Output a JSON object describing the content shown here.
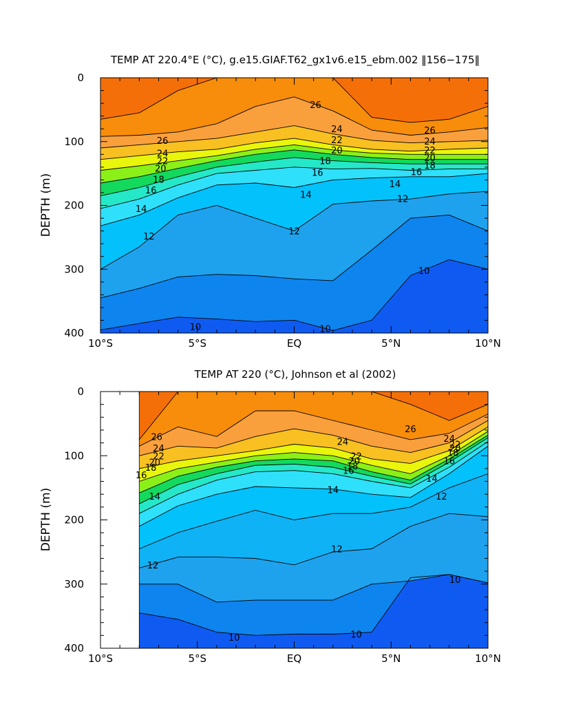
{
  "chart_data": [
    {
      "type": "contour",
      "title": "TEMP AT 220.4°E (°C), g.e15.GIAF.T62_gx1v6.e15_ebm.002 ‖156−175‖",
      "xlabel": "",
      "ylabel": "DEPTH (m)",
      "xlim": [
        -10,
        10
      ],
      "ylim": [
        400,
        0
      ],
      "x_ticks": [
        -10,
        -5,
        0,
        5,
        10
      ],
      "x_tick_labels": [
        "10°S",
        "5°S",
        "EQ",
        "5°N",
        "10°N"
      ],
      "y_ticks": [
        0,
        100,
        200,
        300,
        400
      ],
      "y_tick_labels": [
        "0",
        "100",
        "200",
        "300",
        "400"
      ],
      "data_start_lat": -10,
      "latitudes": [
        -10,
        -8,
        -6,
        -4,
        -2,
        0,
        2,
        4,
        6,
        8,
        10
      ],
      "isotherm_depths": {
        "28": [
          65,
          55,
          20,
          0,
          0,
          0,
          0,
          62,
          70,
          65,
          45
        ],
        "27": [
          92,
          90,
          85,
          72,
          45,
          30,
          52,
          82,
          90,
          85,
          78
        ],
        "26": [
          110,
          105,
          100,
          95,
          85,
          75,
          88,
          98,
          102,
          100,
          98
        ],
        "24": [
          128,
          122,
          116,
          112,
          102,
          95,
          105,
          112,
          115,
          112,
          110
        ],
        "22": [
          145,
          138,
          130,
          122,
          112,
          105,
          113,
          118,
          120,
          120,
          120
        ],
        "20": [
          165,
          155,
          142,
          130,
          120,
          113,
          120,
          125,
          128,
          128,
          128
        ],
        "18": [
          185,
          172,
          155,
          140,
          132,
          125,
          130,
          133,
          135,
          135,
          135
        ],
        "16": [
          205,
          190,
          168,
          150,
          145,
          140,
          143,
          142,
          145,
          143,
          143
        ],
        "14": [
          232,
          215,
          188,
          168,
          165,
          172,
          160,
          157,
          155,
          155,
          150
        ],
        "12": [
          300,
          265,
          215,
          200,
          220,
          240,
          198,
          193,
          190,
          182,
          178
        ],
        "11": [
          345,
          330,
          312,
          308,
          310,
          315,
          318,
          270,
          220,
          215,
          240
        ],
        "10": [
          395,
          385,
          375,
          378,
          382,
          380,
          396,
          380,
          310,
          285,
          300
        ]
      },
      "fill_levels": [
        "<10",
        "10-11",
        "11-12",
        "12-13",
        "13-14",
        "14-16",
        "16-18",
        "18-20",
        "20-22",
        "22-24",
        "24-26",
        "26-27",
        "27-28",
        ">28"
      ],
      "fill_colors": [
        "#0f5bf2",
        "#0e84ee",
        "#1ea2ee",
        "#03c1fb",
        "#2fe0fb",
        "#25e8c8",
        "#13d95d",
        "#8bf018",
        "#eaf50c",
        "#f8c021",
        "#f9a03d",
        "#f78d0a",
        "#f56f08",
        "#f24506"
      ],
      "contour_labels": [
        {
          "text": "26",
          "lat": 1.1,
          "depth": 42
        },
        {
          "text": "26",
          "lat": -6.8,
          "depth": 98
        },
        {
          "text": "24",
          "lat": -6.8,
          "depth": 118
        },
        {
          "text": "22",
          "lat": -6.8,
          "depth": 130
        },
        {
          "text": "20",
          "lat": -6.9,
          "depth": 142
        },
        {
          "text": "18",
          "lat": -7.0,
          "depth": 159
        },
        {
          "text": "16",
          "lat": -7.4,
          "depth": 176
        },
        {
          "text": "14",
          "lat": -7.9,
          "depth": 205
        },
        {
          "text": "12",
          "lat": -7.5,
          "depth": 248
        },
        {
          "text": "24",
          "lat": 2.2,
          "depth": 80
        },
        {
          "text": "22",
          "lat": 2.2,
          "depth": 97
        },
        {
          "text": "20",
          "lat": 2.2,
          "depth": 113
        },
        {
          "text": "18",
          "lat": 1.6,
          "depth": 130
        },
        {
          "text": "16",
          "lat": 1.2,
          "depth": 148
        },
        {
          "text": "14",
          "lat": 0.6,
          "depth": 183
        },
        {
          "text": "12",
          "lat": 0.0,
          "depth": 240
        },
        {
          "text": "26",
          "lat": 7.0,
          "depth": 82
        },
        {
          "text": "24",
          "lat": 7.0,
          "depth": 99
        },
        {
          "text": "22",
          "lat": 7.0,
          "depth": 113
        },
        {
          "text": "20",
          "lat": 7.0,
          "depth": 125
        },
        {
          "text": "18",
          "lat": 7.0,
          "depth": 137
        },
        {
          "text": "16",
          "lat": 6.3,
          "depth": 147
        },
        {
          "text": "14",
          "lat": 5.2,
          "depth": 166
        },
        {
          "text": "12",
          "lat": 5.6,
          "depth": 189
        },
        {
          "text": "10",
          "lat": 6.7,
          "depth": 302
        },
        {
          "text": "10",
          "lat": -5.1,
          "depth": 390
        },
        {
          "text": "10",
          "lat": 1.6,
          "depth": 393
        }
      ]
    },
    {
      "type": "contour",
      "title": "TEMP AT 220 (°C), Johnson et al (2002)",
      "xlabel": "",
      "ylabel": "DEPTH (m)",
      "xlim": [
        -10,
        10
      ],
      "ylim": [
        400,
        0
      ],
      "x_ticks": [
        -10,
        -5,
        0,
        5,
        10
      ],
      "x_tick_labels": [
        "10°S",
        "5°S",
        "EQ",
        "5°N",
        "10°N"
      ],
      "y_ticks": [
        0,
        100,
        200,
        300,
        400
      ],
      "y_tick_labels": [
        "0",
        "100",
        "200",
        "300",
        "400"
      ],
      "data_start_lat": -8,
      "latitudes": [
        -8,
        -6,
        -4,
        -2,
        0,
        2,
        4,
        6,
        8,
        10
      ],
      "isotherm_depths": {
        "28": [
          75,
          0,
          0,
          0,
          0,
          0,
          0,
          20,
          45,
          20
        ],
        "27": [
          85,
          55,
          70,
          30,
          30,
          45,
          60,
          75,
          65,
          35
        ],
        "26": [
          100,
          85,
          88,
          70,
          58,
          68,
          85,
          95,
          80,
          45
        ],
        "24": [
          120,
          108,
          100,
          92,
          82,
          88,
          105,
          112,
          92,
          55
        ],
        "22": [
          140,
          120,
          110,
          100,
          95,
          100,
          115,
          128,
          100,
          62
        ],
        "20": [
          158,
          132,
          118,
          108,
          105,
          108,
          125,
          138,
          105,
          68
        ],
        "18": [
          175,
          145,
          128,
          115,
          113,
          118,
          132,
          144,
          110,
          72
        ],
        "16": [
          190,
          160,
          138,
          125,
          123,
          128,
          140,
          150,
          118,
          78
        ],
        "14": [
          210,
          178,
          160,
          148,
          150,
          152,
          160,
          165,
          128,
          85
        ],
        "12": [
          245,
          220,
          202,
          185,
          200,
          190,
          190,
          180,
          150,
          128
        ],
        "11": [
          275,
          258,
          258,
          260,
          270,
          250,
          245,
          210,
          190,
          195
        ],
        "10": [
          300,
          300,
          328,
          325,
          325,
          325,
          300,
          295,
          285,
          298
        ],
        "9": [
          345,
          355,
          375,
          380,
          378,
          378,
          375,
          290,
          285,
          298
        ]
      },
      "fill_levels": [
        "<9",
        "9-10",
        "10-11",
        "11-12",
        "12-13",
        "13-14",
        "14-16",
        "16-18",
        "18-20",
        "20-22",
        "22-24",
        "24-26",
        "26-27",
        "27-28",
        ">28"
      ],
      "fill_colors": [
        "#0f5bf2",
        "#0e84ee",
        "#1ea2ee",
        "#0fb2f5",
        "#03c1fb",
        "#2fe0fb",
        "#25e8c8",
        "#13d95d",
        "#8bf018",
        "#eaf50c",
        "#f8c021",
        "#f9a03d",
        "#f78d0a",
        "#f56f08",
        "#f24506"
      ],
      "contour_labels": [
        {
          "text": "26",
          "lat": -7.1,
          "depth": 70
        },
        {
          "text": "24",
          "lat": -7.0,
          "depth": 88
        },
        {
          "text": "22",
          "lat": -7.0,
          "depth": 100
        },
        {
          "text": "20",
          "lat": -7.2,
          "depth": 110
        },
        {
          "text": "18",
          "lat": -7.4,
          "depth": 118
        },
        {
          "text": "16",
          "lat": -7.9,
          "depth": 130
        },
        {
          "text": "14",
          "lat": -7.2,
          "depth": 163
        },
        {
          "text": "24",
          "lat": 2.5,
          "depth": 78
        },
        {
          "text": "22",
          "lat": 3.2,
          "depth": 100
        },
        {
          "text": "20",
          "lat": 3.1,
          "depth": 108
        },
        {
          "text": "18",
          "lat": 3.0,
          "depth": 116
        },
        {
          "text": "16",
          "lat": 2.8,
          "depth": 123
        },
        {
          "text": "14",
          "lat": 2.0,
          "depth": 153
        },
        {
          "text": "12",
          "lat": 2.2,
          "depth": 245
        },
        {
          "text": "12",
          "lat": -7.3,
          "depth": 270
        },
        {
          "text": "26",
          "lat": 6.0,
          "depth": 58
        },
        {
          "text": "24",
          "lat": 8.0,
          "depth": 73
        },
        {
          "text": "22",
          "lat": 8.3,
          "depth": 82
        },
        {
          "text": "20",
          "lat": 8.3,
          "depth": 88
        },
        {
          "text": "18",
          "lat": 8.2,
          "depth": 95
        },
        {
          "text": "16",
          "lat": 8.0,
          "depth": 108
        },
        {
          "text": "14",
          "lat": 7.1,
          "depth": 135
        },
        {
          "text": "12",
          "lat": 7.6,
          "depth": 163
        },
        {
          "text": "10",
          "lat": 8.3,
          "depth": 293
        },
        {
          "text": "10",
          "lat": -3.1,
          "depth": 383
        },
        {
          "text": "10",
          "lat": 3.2,
          "depth": 378
        }
      ]
    }
  ]
}
